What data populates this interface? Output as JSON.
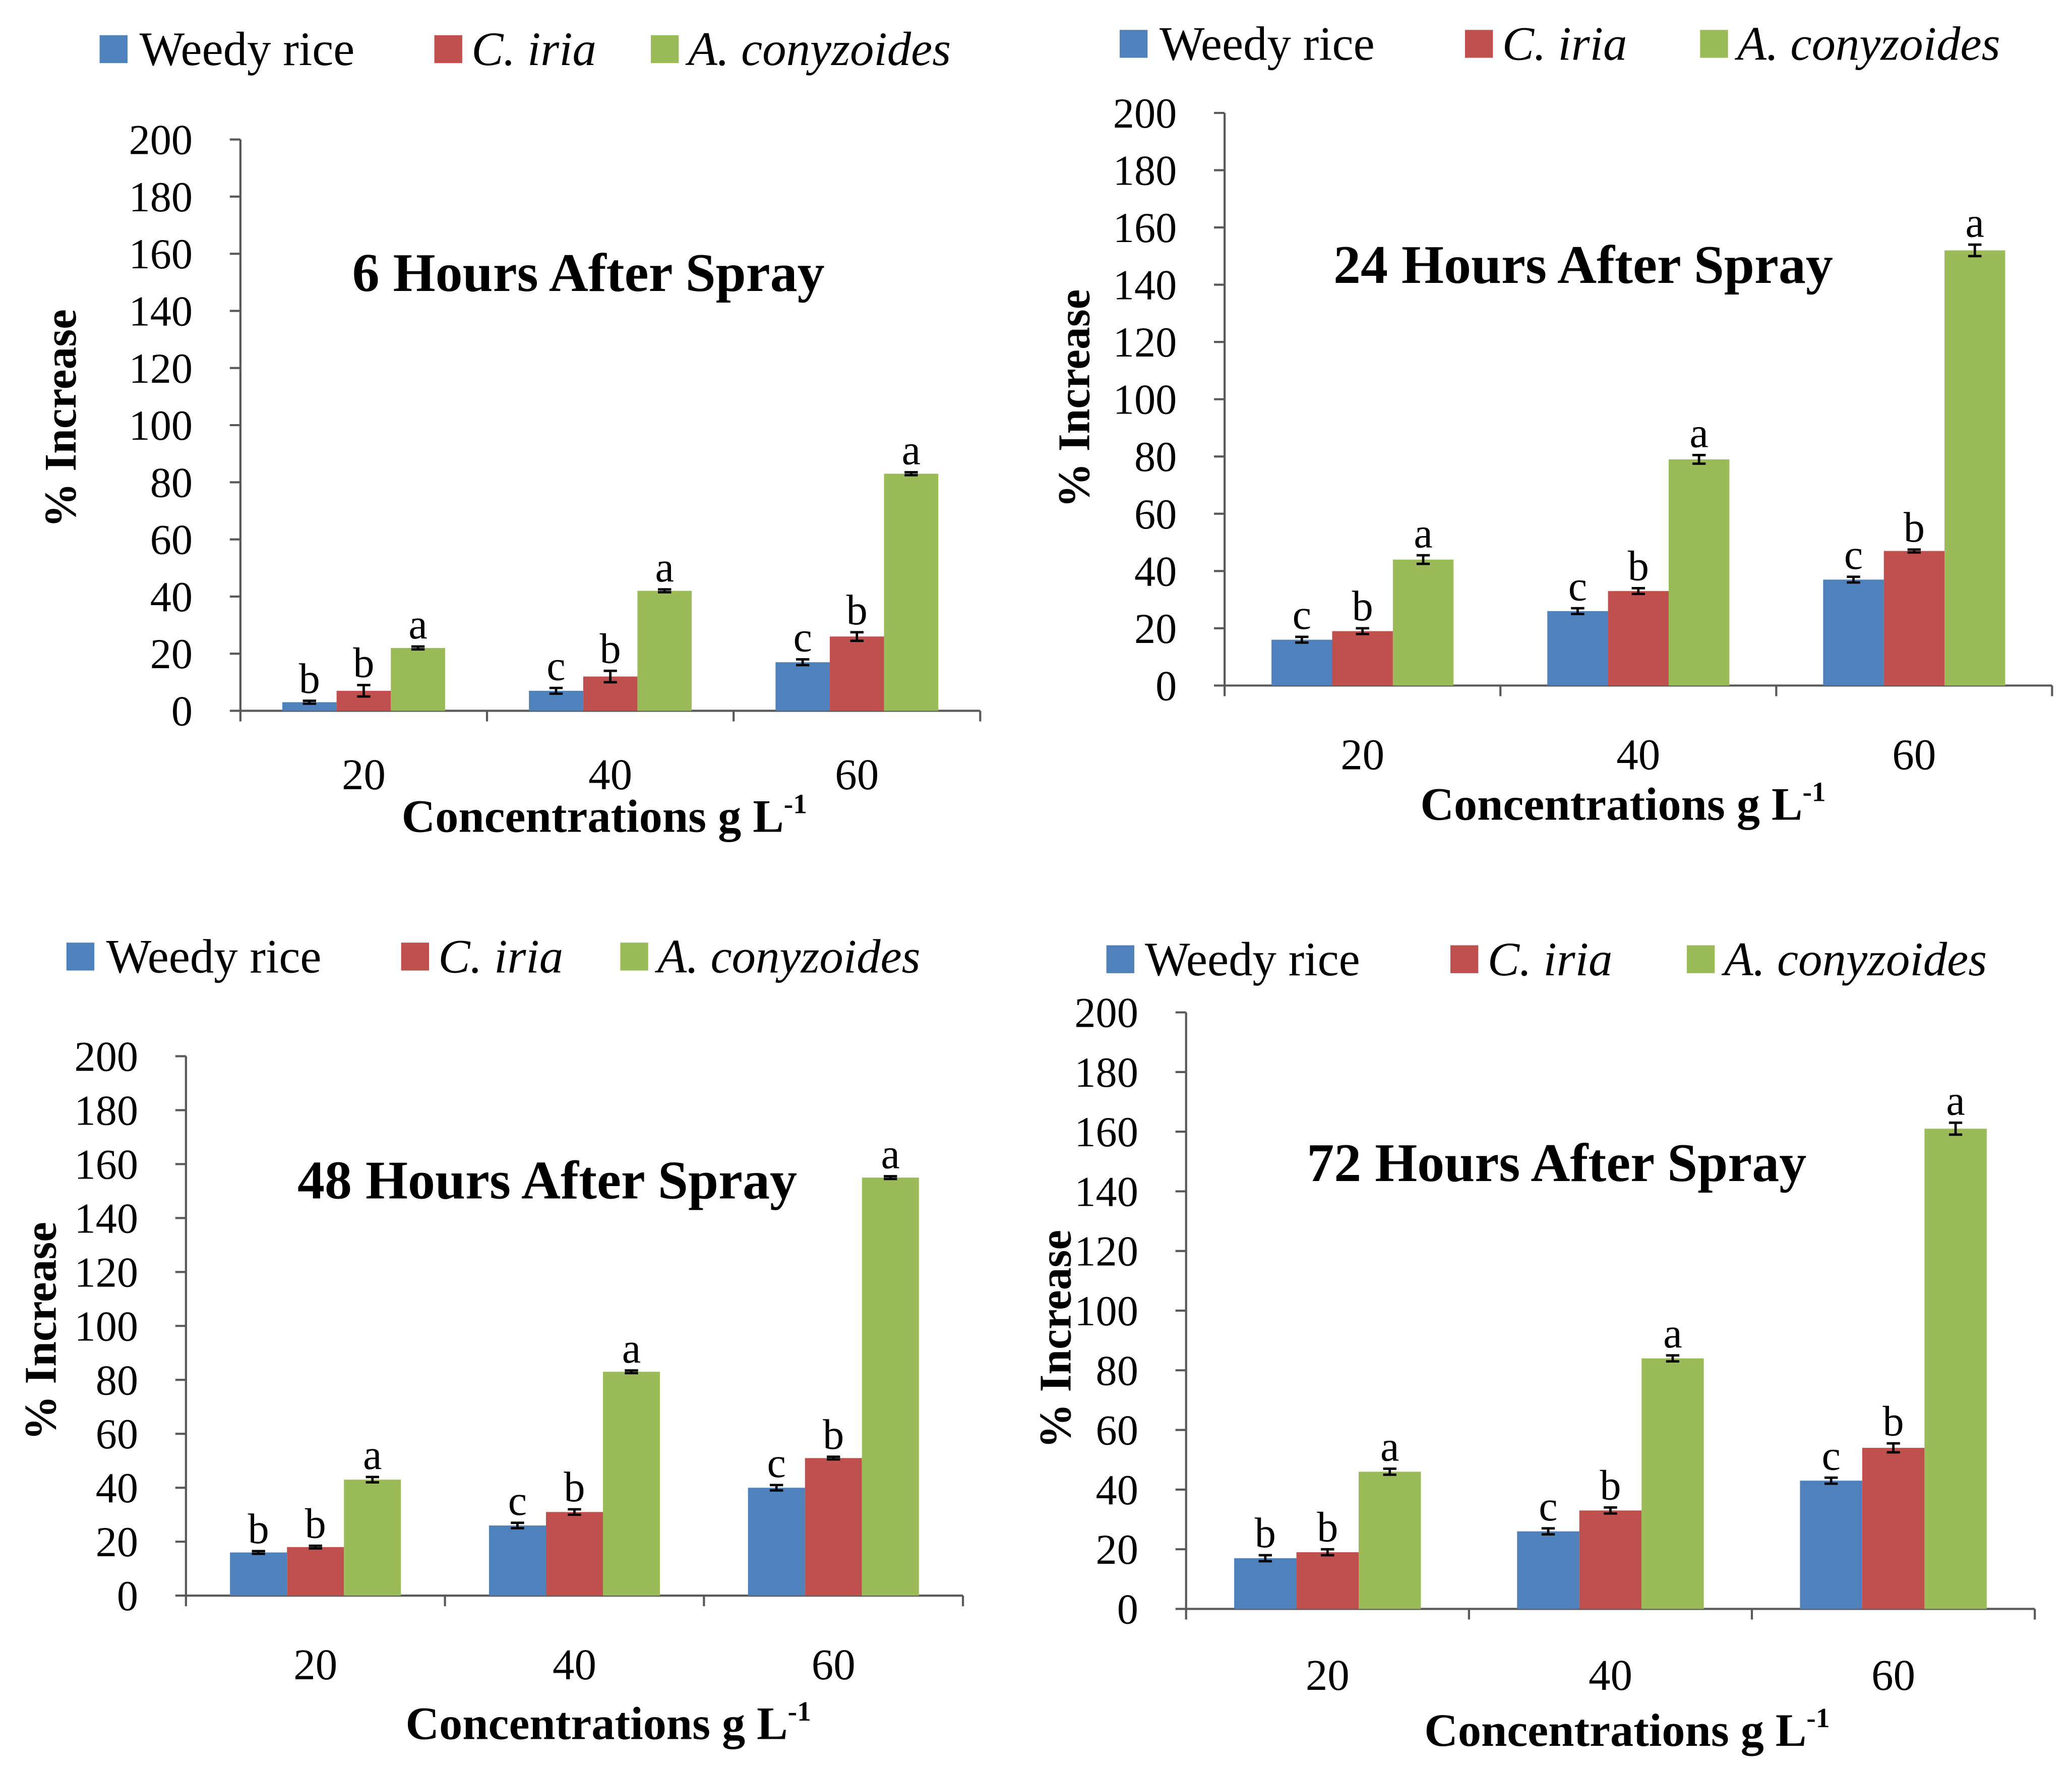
{
  "chart_data": [
    {
      "type": "bar",
      "title": "6 Hours After Spray",
      "xlabel": "Concentrations g L",
      "xlabel_superscript": "-1",
      "ylabel": "% Increase",
      "ylim": [
        0,
        200
      ],
      "yticks": [
        0,
        20,
        40,
        60,
        80,
        100,
        120,
        140,
        160,
        180,
        200
      ],
      "categories": [
        "20",
        "40",
        "60"
      ],
      "legend_position": "top",
      "series": [
        {
          "name": "Weedy rice",
          "color": "#4F81BD",
          "values": [
            3,
            7,
            17
          ],
          "errors": [
            0.5,
            1,
            1
          ],
          "letters": [
            "b",
            "c",
            "c"
          ]
        },
        {
          "name": "C. iria",
          "color": "#C0504D",
          "values": [
            7,
            12,
            26
          ],
          "errors": [
            2,
            2,
            1.5
          ],
          "letters": [
            "b",
            "b",
            "b"
          ]
        },
        {
          "name": "A. conyzoides",
          "color": "#9BBB59",
          "values": [
            22,
            42,
            83
          ],
          "errors": [
            0.5,
            0.5,
            0.5
          ],
          "letters": [
            "a",
            "a",
            "a"
          ]
        }
      ]
    },
    {
      "type": "bar",
      "title": "24 Hours After Spray",
      "xlabel": "Concentrations g L",
      "xlabel_superscript": "-1",
      "ylabel": "% Increase",
      "ylim": [
        0,
        200
      ],
      "yticks": [
        0,
        20,
        40,
        60,
        80,
        100,
        120,
        140,
        160,
        180,
        200
      ],
      "categories": [
        "20",
        "40",
        "60"
      ],
      "legend_position": "top",
      "series": [
        {
          "name": "Weedy rice",
          "color": "#4F81BD",
          "values": [
            16,
            26,
            37
          ],
          "errors": [
            1,
            1,
            1
          ],
          "letters": [
            "c",
            "c",
            "c"
          ]
        },
        {
          "name": "C. iria",
          "color": "#C0504D",
          "values": [
            19,
            33,
            47
          ],
          "errors": [
            1,
            1,
            0.5
          ],
          "letters": [
            "b",
            "b",
            "b"
          ]
        },
        {
          "name": "A. conyzoides",
          "color": "#9BBB59",
          "values": [
            44,
            79,
            152
          ],
          "errors": [
            1.5,
            1.5,
            2
          ],
          "letters": [
            "a",
            "a",
            "a"
          ]
        }
      ]
    },
    {
      "type": "bar",
      "title": "48 Hours After Spray",
      "xlabel": "Concentrations g L",
      "xlabel_superscript": "-1",
      "ylabel": "% Increase",
      "ylim": [
        0,
        200
      ],
      "yticks": [
        0,
        20,
        40,
        60,
        80,
        100,
        120,
        140,
        160,
        180,
        200
      ],
      "categories": [
        "20",
        "40",
        "60"
      ],
      "legend_position": "top",
      "series": [
        {
          "name": "Weedy rice",
          "color": "#4F81BD",
          "values": [
            16,
            26,
            40
          ],
          "errors": [
            0.5,
            1,
            1
          ],
          "letters": [
            "b",
            "c",
            "c"
          ]
        },
        {
          "name": "C. iria",
          "color": "#C0504D",
          "values": [
            18,
            31,
            51
          ],
          "errors": [
            0.5,
            1,
            0.5
          ],
          "letters": [
            "b",
            "b",
            "b"
          ]
        },
        {
          "name": "A. conyzoides",
          "color": "#9BBB59",
          "values": [
            43,
            83,
            155
          ],
          "errors": [
            1,
            0.5,
            0.5
          ],
          "letters": [
            "a",
            "a",
            "a"
          ]
        }
      ]
    },
    {
      "type": "bar",
      "title": "72 Hours After Spray",
      "xlabel": "Concentrations g L",
      "xlabel_superscript": "-1",
      "ylabel": "% Increase",
      "ylim": [
        0,
        200
      ],
      "yticks": [
        0,
        20,
        40,
        60,
        80,
        100,
        120,
        140,
        160,
        180,
        200
      ],
      "categories": [
        "20",
        "40",
        "60"
      ],
      "legend_position": "top",
      "series": [
        {
          "name": "Weedy rice",
          "color": "#4F81BD",
          "values": [
            17,
            26,
            43
          ],
          "errors": [
            1,
            1,
            1
          ],
          "letters": [
            "b",
            "c",
            "c"
          ]
        },
        {
          "name": "C. iria",
          "color": "#C0504D",
          "values": [
            19,
            33,
            54
          ],
          "errors": [
            1,
            1,
            1.5
          ],
          "letters": [
            "b",
            "b",
            "b"
          ]
        },
        {
          "name": "A. conyzoides",
          "color": "#9BBB59",
          "values": [
            46,
            84,
            161
          ],
          "errors": [
            1,
            1,
            2
          ],
          "letters": [
            "a",
            "a",
            "a"
          ]
        }
      ]
    }
  ]
}
